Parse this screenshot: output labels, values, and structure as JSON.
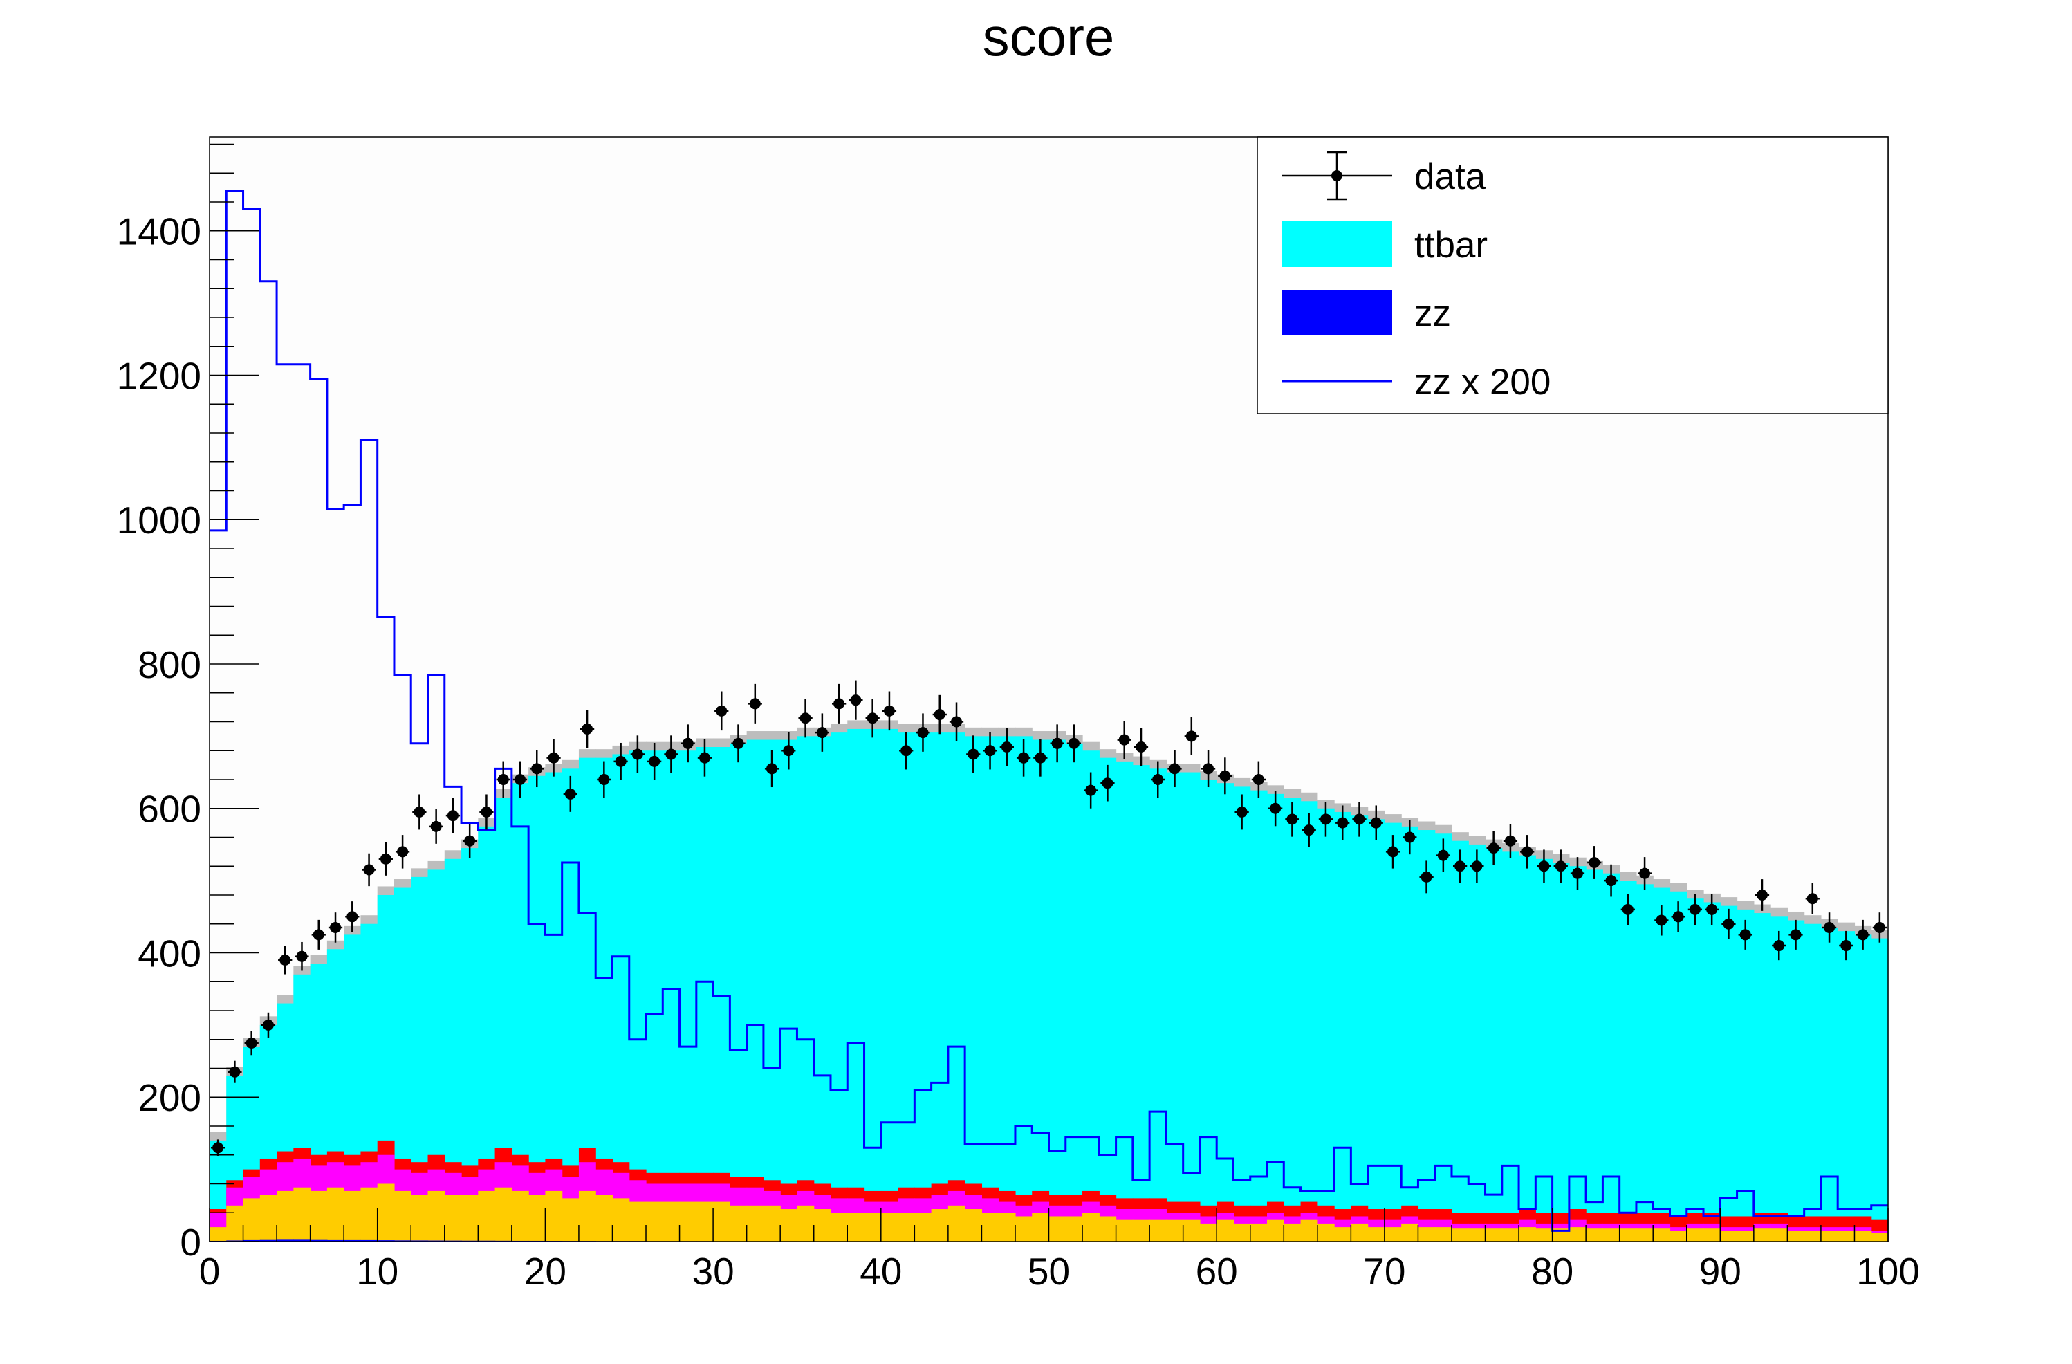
{
  "chart_data": {
    "type": "bar",
    "title": "score",
    "xlabel": "",
    "ylabel": "",
    "xlim": [
      0,
      100
    ],
    "ylim": [
      0,
      1530
    ],
    "n_bins": 100,
    "bin_width": 1,
    "x_ticks": [
      0,
      10,
      20,
      30,
      40,
      50,
      60,
      70,
      80,
      90,
      100
    ],
    "x_tick_labels": [
      "0",
      "10",
      "20",
      "30",
      "40",
      "50",
      "60",
      "70",
      "80",
      "90",
      "100"
    ],
    "y_ticks": [
      0,
      200,
      400,
      600,
      800,
      1000,
      1200,
      1400
    ],
    "y_tick_labels": [
      "0",
      "200",
      "400",
      "600",
      "800",
      "1000",
      "1200",
      "1400"
    ],
    "legend_position": "top-right",
    "legend": [
      {
        "label": "data",
        "style": "marker",
        "color": "#000000"
      },
      {
        "label": "ttbar",
        "style": "fill",
        "color": "#00ffff"
      },
      {
        "label": "zz",
        "style": "fill",
        "color": "#0000ff"
      },
      {
        "label": "zz x 200",
        "style": "line",
        "color": "#0000ff"
      }
    ],
    "colors": {
      "ttbar": "#00ffff",
      "zz": "#0000ff",
      "bkg_red": "#ff0000",
      "bkg_magenta": "#ff00ff",
      "bkg_orange": "#ffcc00",
      "uncertainty": "#bdbdbd",
      "data": "#000000",
      "zz_scaled_line": "#0000ff"
    },
    "stack_total": [
      140,
      230,
      270,
      300,
      330,
      370,
      385,
      405,
      425,
      440,
      480,
      490,
      505,
      515,
      530,
      545,
      575,
      615,
      635,
      645,
      650,
      655,
      670,
      670,
      675,
      680,
      680,
      680,
      680,
      685,
      685,
      690,
      695,
      695,
      695,
      700,
      700,
      705,
      710,
      710,
      710,
      705,
      705,
      705,
      705,
      700,
      700,
      700,
      700,
      695,
      695,
      690,
      680,
      670,
      665,
      660,
      655,
      650,
      650,
      640,
      635,
      630,
      625,
      620,
      615,
      610,
      600,
      595,
      590,
      585,
      580,
      575,
      570,
      565,
      555,
      550,
      545,
      540,
      535,
      530,
      525,
      520,
      515,
      510,
      500,
      495,
      490,
      485,
      475,
      470,
      465,
      460,
      455,
      450,
      445,
      440,
      435,
      430,
      425,
      420
    ],
    "red_top": [
      45,
      85,
      100,
      115,
      125,
      130,
      120,
      125,
      120,
      125,
      140,
      115,
      110,
      120,
      110,
      105,
      115,
      130,
      120,
      110,
      115,
      105,
      130,
      115,
      110,
      100,
      95,
      95,
      95,
      95,
      95,
      90,
      90,
      85,
      80,
      85,
      80,
      75,
      75,
      70,
      70,
      75,
      75,
      80,
      85,
      80,
      75,
      70,
      65,
      70,
      65,
      65,
      70,
      65,
      60,
      60,
      60,
      55,
      55,
      50,
      55,
      50,
      50,
      55,
      50,
      55,
      50,
      45,
      50,
      45,
      45,
      50,
      45,
      45,
      40,
      40,
      40,
      40,
      45,
      40,
      40,
      45,
      40,
      40,
      40,
      40,
      40,
      35,
      40,
      40,
      35,
      35,
      40,
      40,
      35,
      35,
      35,
      35,
      35,
      30
    ],
    "magenta_top": [
      40,
      75,
      90,
      100,
      110,
      115,
      105,
      110,
      105,
      110,
      120,
      100,
      95,
      100,
      95,
      90,
      100,
      110,
      105,
      95,
      100,
      90,
      110,
      100,
      95,
      85,
      80,
      80,
      80,
      80,
      80,
      75,
      75,
      70,
      65,
      70,
      65,
      60,
      60,
      55,
      55,
      60,
      60,
      65,
      70,
      65,
      60,
      55,
      50,
      55,
      50,
      50,
      55,
      50,
      45,
      45,
      45,
      40,
      40,
      35,
      40,
      35,
      35,
      40,
      35,
      40,
      35,
      30,
      35,
      30,
      30,
      35,
      30,
      30,
      25,
      25,
      25,
      25,
      30,
      25,
      25,
      30,
      25,
      25,
      25,
      25,
      25,
      20,
      25,
      25,
      20,
      20,
      25,
      25,
      20,
      20,
      20,
      20,
      20,
      15
    ],
    "orange_top": [
      20,
      50,
      60,
      65,
      70,
      75,
      70,
      75,
      70,
      75,
      80,
      70,
      65,
      70,
      65,
      65,
      70,
      75,
      70,
      65,
      70,
      60,
      70,
      65,
      60,
      55,
      55,
      55,
      55,
      55,
      55,
      50,
      50,
      50,
      45,
      50,
      45,
      40,
      40,
      40,
      40,
      40,
      40,
      45,
      50,
      45,
      40,
      40,
      35,
      40,
      35,
      35,
      40,
      35,
      30,
      30,
      30,
      30,
      30,
      25,
      30,
      25,
      25,
      30,
      25,
      30,
      25,
      20,
      25,
      20,
      20,
      25,
      20,
      20,
      18,
      18,
      18,
      18,
      20,
      18,
      18,
      20,
      18,
      18,
      18,
      18,
      18,
      15,
      18,
      18,
      15,
      15,
      18,
      18,
      15,
      15,
      15,
      15,
      15,
      12
    ],
    "zz_values": [
      1,
      1.5,
      2,
      2.2,
      2.5,
      2.5,
      2.2,
      2,
      2,
      2,
      1.8,
      1.6,
      1.5,
      1.4,
      1.3,
      1.2,
      1.2,
      1.1,
      1,
      1,
      0.9,
      0.8,
      0.8,
      0.7,
      0.7,
      0.7,
      0.6,
      0.6,
      0.6,
      0.6,
      0.5,
      0.5,
      0.5,
      0.5,
      0.5,
      0.4,
      0.4,
      0.4,
      0.4,
      0.3,
      0.3,
      0.3,
      0.3,
      0.3,
      0.3,
      0.3,
      0.3,
      0.3,
      0.3,
      0.3,
      0.3,
      0.3,
      0.3,
      0.3,
      0.3,
      0.3,
      0.3,
      0.3,
      0.3,
      0.2,
      0.2,
      0.2,
      0.2,
      0.2,
      0.2,
      0.2,
      0.2,
      0.2,
      0.2,
      0.2,
      0.2,
      0.2,
      0.2,
      0.2,
      0.2,
      0.2,
      0.2,
      0.2,
      0.2,
      0.2,
      0.2,
      0.2,
      0.2,
      0.2,
      0.2,
      0.2,
      0.2,
      0.2,
      0.2,
      0.2,
      0.2,
      0.2,
      0.2,
      0.2,
      0.2,
      0.2,
      0.2,
      0.2,
      0.2,
      0.2
    ],
    "zz_x200": [
      985,
      1455,
      1430,
      1330,
      1215,
      1215,
      1195,
      1015,
      1020,
      1110,
      865,
      785,
      690,
      785,
      630,
      580,
      570,
      655,
      575,
      440,
      425,
      525,
      455,
      365,
      395,
      280,
      315,
      350,
      270,
      360,
      340,
      265,
      300,
      240,
      295,
      280,
      230,
      210,
      275,
      130,
      165,
      165,
      210,
      220,
      270,
      135,
      135,
      135,
      160,
      150,
      125,
      145,
      145,
      120,
      145,
      85,
      180,
      135,
      95,
      145,
      115,
      85,
      90,
      110,
      75,
      70,
      70,
      130,
      80,
      105,
      105,
      75,
      85,
      105,
      90,
      80,
      65,
      105,
      45,
      90,
      15,
      90,
      55,
      90,
      40,
      55,
      45,
      35,
      45,
      35,
      60,
      70,
      35,
      35,
      35,
      45,
      90,
      45,
      45,
      50
    ],
    "data_values": [
      130,
      235,
      275,
      300,
      390,
      395,
      425,
      435,
      450,
      515,
      530,
      540,
      595,
      575,
      590,
      555,
      595,
      640,
      640,
      655,
      670,
      620,
      710,
      640,
      665,
      675,
      665,
      675,
      690,
      670,
      735,
      690,
      745,
      655,
      680,
      725,
      705,
      745,
      750,
      725,
      735,
      680,
      705,
      730,
      720,
      675,
      680,
      685,
      670,
      670,
      690,
      690,
      625,
      635,
      695,
      685,
      640,
      655,
      700,
      655,
      645,
      595,
      640,
      600,
      585,
      570,
      585,
      580,
      585,
      580,
      540,
      560,
      505,
      535,
      520,
      520,
      545,
      555,
      540,
      520,
      520,
      510,
      525,
      500,
      460,
      510,
      445,
      450,
      460,
      460,
      440,
      425,
      480,
      410,
      425,
      475,
      435,
      410,
      425,
      435
    ]
  }
}
